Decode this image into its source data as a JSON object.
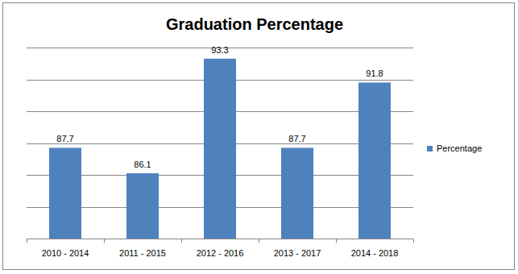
{
  "chart_data": {
    "type": "bar",
    "title": "Graduation Percentage",
    "categories": [
      "2010 - 2014",
      "2011 - 2015",
      "2012 - 2016",
      "2013 - 2017",
      "2014 - 2018"
    ],
    "series": [
      {
        "name": "Percentage",
        "color": "#4f81bd",
        "values": [
          87.7,
          86.1,
          93.3,
          87.7,
          91.8
        ]
      }
    ],
    "ylim": [
      82,
      94
    ],
    "yticks": [
      82,
      84,
      86,
      88,
      90,
      92,
      94
    ],
    "grid": true,
    "legend": "right",
    "data_labels": true,
    "tick_labels": "x"
  }
}
